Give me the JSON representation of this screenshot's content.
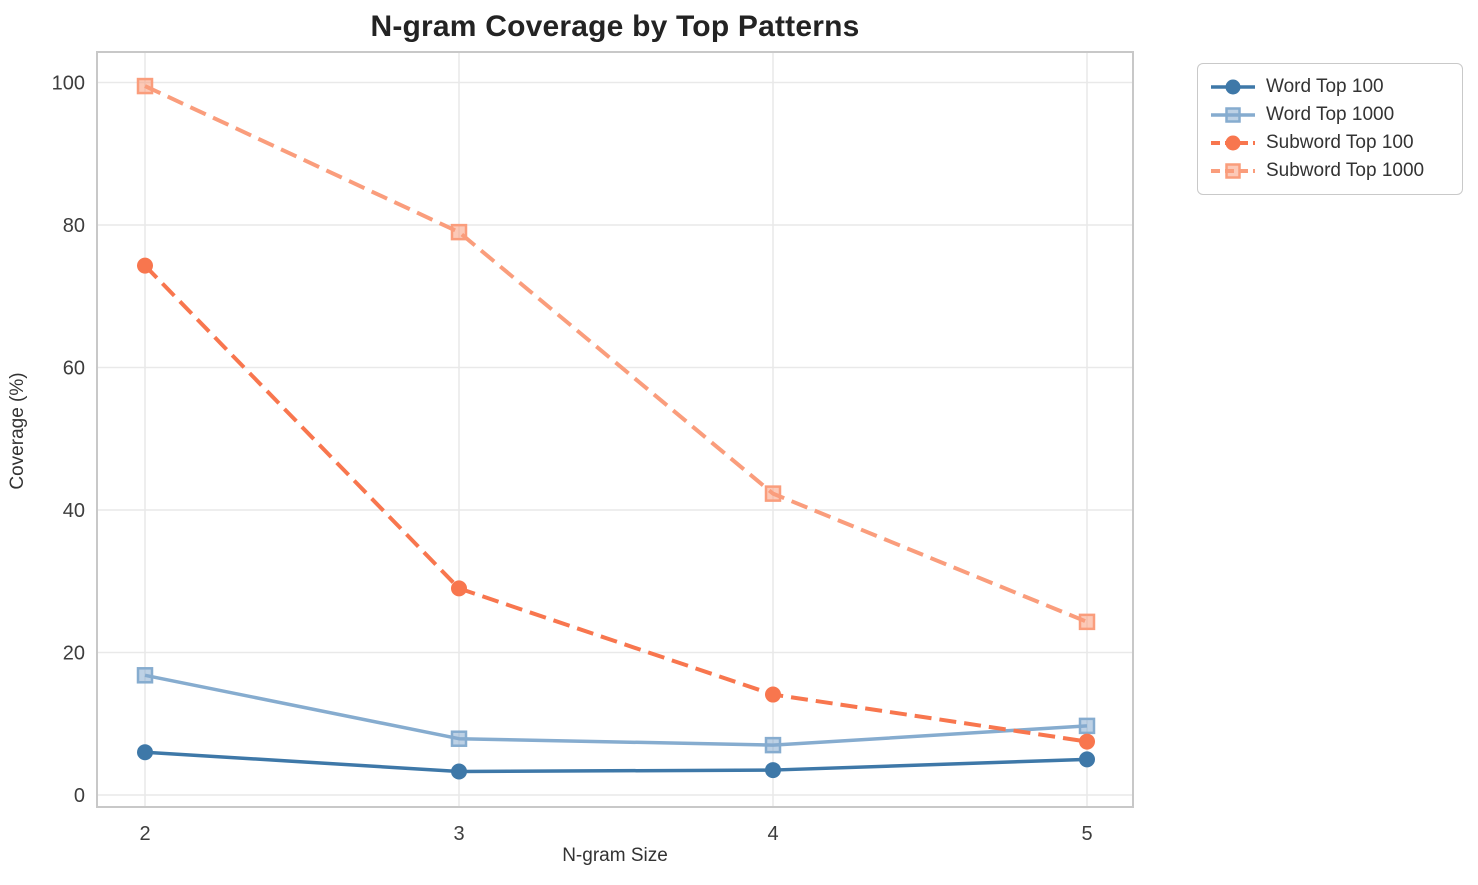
{
  "title": "N-gram Coverage by Top Patterns",
  "chart_data": {
    "type": "line",
    "title": "N-gram Coverage by Top Patterns",
    "xlabel": "N-gram Size",
    "ylabel": "Coverage (%)",
    "x": [
      2,
      3,
      4,
      5
    ],
    "x_tick_labels": [
      "2",
      "3",
      "4",
      "5"
    ],
    "y_ticks": [
      0,
      20,
      40,
      60,
      80,
      100
    ],
    "ylim": [
      0,
      100
    ],
    "grid": true,
    "legend_position": "outside-top-right",
    "series": [
      {
        "name": "Word Top 100",
        "values": [
          6.0,
          3.3,
          3.5,
          5.0
        ],
        "color": "#3e78a8",
        "marker": "circle",
        "line_style": "solid"
      },
      {
        "name": "Word Top 1000",
        "values": [
          16.8,
          7.9,
          7.0,
          9.7
        ],
        "color": "#86accf",
        "marker": "square",
        "line_style": "solid"
      },
      {
        "name": "Subword Top 100",
        "values": [
          74.3,
          29.0,
          14.1,
          7.5
        ],
        "color": "#f8764e",
        "marker": "circle",
        "line_style": "dashed"
      },
      {
        "name": "Subword Top 1000",
        "values": [
          99.5,
          79.0,
          42.3,
          24.3
        ],
        "color": "#fa9d7c",
        "marker": "square",
        "line_style": "dashed"
      }
    ],
    "colors": {
      "grid": "#e9e9e9",
      "spine": "#c8c8c8",
      "tick_text": "#3d3d3d",
      "title_text": "#232323"
    }
  }
}
